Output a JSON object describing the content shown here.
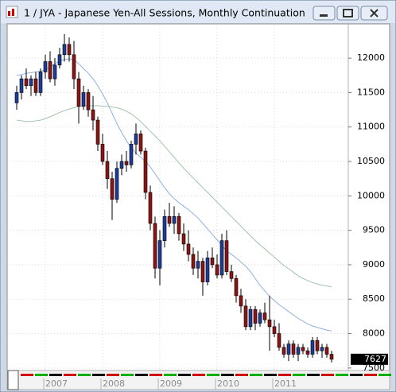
{
  "chart_data": {
    "type": "candlestick",
    "title": "1 / JYA - Japanese Yen-All Sessions, Monthly Continuation",
    "up_color": "#1c3c9c",
    "down_color": "#8e1414",
    "open": [
      11350,
      11500,
      11700,
      11600,
      11700,
      11500,
      11800,
      11950,
      11700,
      11900,
      12050,
      12200,
      12050,
      11700,
      11300,
      11500,
      11250,
      11100,
      10750,
      10500,
      10250,
      9950,
      10400,
      10500,
      10450,
      10750,
      10900,
      10650,
      10050,
      9600,
      8950,
      9350,
      9700,
      9600,
      9700,
      9450,
      9300,
      9150,
      8950,
      9050,
      8750,
      9100,
      9000,
      8850,
      9350,
      8900,
      8800,
      8550,
      8400,
      8100,
      8350,
      8150,
      8300,
      8200,
      8100,
      8000,
      7800,
      7700,
      7850,
      7700,
      7800,
      7750,
      7700,
      7900,
      7750,
      7800,
      7700
    ],
    "high": [
      11600,
      11750,
      11850,
      11750,
      11800,
      11850,
      12050,
      12100,
      12000,
      12150,
      12350,
      12300,
      12250,
      11800,
      11600,
      11550,
      11450,
      11150,
      10900,
      10650,
      10350,
      10500,
      10600,
      10650,
      10800,
      11050,
      10950,
      10700,
      10150,
      9700,
      9500,
      9800,
      9900,
      9850,
      9750,
      9600,
      9500,
      9250,
      9200,
      9100,
      9200,
      9250,
      9150,
      9450,
      9500,
      9000,
      8850,
      8650,
      8500,
      8400,
      8400,
      8350,
      8450,
      8550,
      8200,
      8150,
      7850,
      7900,
      7900,
      7850,
      7850,
      7800,
      7950,
      7950,
      7850,
      7850,
      7750
    ],
    "low": [
      11250,
      11400,
      11550,
      11450,
      11450,
      11450,
      11700,
      11650,
      11600,
      11850,
      11950,
      11950,
      11550,
      11050,
      11250,
      11150,
      10950,
      10650,
      10450,
      10100,
      9650,
      9900,
      10300,
      10350,
      10400,
      10600,
      10600,
      9950,
      9500,
      8800,
      8700,
      9250,
      9550,
      9450,
      9350,
      9200,
      9050,
      8850,
      8800,
      8550,
      8700,
      8950,
      8800,
      8800,
      8850,
      8750,
      8450,
      8300,
      8050,
      8050,
      8050,
      8100,
      8150,
      7750,
      7950,
      7750,
      7650,
      7600,
      7650,
      7600,
      7700,
      7650,
      7650,
      7700,
      7650,
      7650,
      7580
    ],
    "close": [
      11500,
      11700,
      11600,
      11700,
      11500,
      11800,
      11950,
      11700,
      11900,
      12050,
      12200,
      12050,
      11700,
      11300,
      11500,
      11250,
      11100,
      10750,
      10500,
      10250,
      9950,
      10400,
      10500,
      10450,
      10750,
      10900,
      10650,
      10050,
      9600,
      8950,
      9350,
      9700,
      9600,
      9700,
      9450,
      9300,
      9150,
      8950,
      9050,
      8750,
      9100,
      9000,
      8850,
      9350,
      8900,
      8800,
      8550,
      8400,
      8100,
      8350,
      8150,
      8300,
      8200,
      8100,
      8000,
      7800,
      7700,
      7850,
      7700,
      7800,
      7750,
      7700,
      7900,
      7750,
      7800,
      7700,
      7627
    ],
    "overlays": [
      {
        "color": "#8fb0e0",
        "values": [
          11750,
          11760,
          11780,
          11790,
          11800,
          11810,
          11830,
          11870,
          11920,
          11960,
          11980,
          11990,
          11980,
          11920,
          11850,
          11780,
          11700,
          11600,
          11480,
          11350,
          11200,
          11050,
          10920,
          10800,
          10700,
          10620,
          10560,
          10500,
          10420,
          10320,
          10220,
          10120,
          10030,
          9960,
          9900,
          9850,
          9800,
          9740,
          9680,
          9600,
          9520,
          9440,
          9360,
          9280,
          9200,
          9150,
          9100,
          9040,
          8980,
          8900,
          8800,
          8700,
          8620,
          8540,
          8480,
          8420,
          8370,
          8320,
          8270,
          8220,
          8180,
          8140,
          8110,
          8090,
          8070,
          8050,
          8040
        ]
      },
      {
        "color": "#9fc4a8",
        "values": [
          11100,
          11090,
          11080,
          11080,
          11090,
          11100,
          11120,
          11150,
          11180,
          11210,
          11240,
          11260,
          11280,
          11300,
          11310,
          11310,
          11310,
          11310,
          11300,
          11300,
          11290,
          11280,
          11260,
          11230,
          11190,
          11140,
          11080,
          11010,
          10940,
          10870,
          10800,
          10720,
          10640,
          10560,
          10480,
          10400,
          10330,
          10260,
          10190,
          10120,
          10050,
          9980,
          9910,
          9840,
          9770,
          9700,
          9630,
          9560,
          9490,
          9420,
          9350,
          9290,
          9230,
          9170,
          9110,
          9050,
          8990,
          8940,
          8890,
          8840,
          8800,
          8770,
          8740,
          8720,
          8700,
          8690,
          8680
        ]
      }
    ],
    "ylim": [
      7475,
      12475
    ],
    "yticks": [
      7500,
      8000,
      8500,
      9000,
      9500,
      10000,
      10500,
      11000,
      11500,
      12000
    ],
    "xticks": [
      {
        "value": 6,
        "label": "2007"
      },
      {
        "value": 18,
        "label": "2008"
      },
      {
        "value": 30,
        "label": "2009"
      },
      {
        "value": 42,
        "label": "2010"
      },
      {
        "value": 54,
        "label": "2011"
      }
    ],
    "grid": true
  }
}
